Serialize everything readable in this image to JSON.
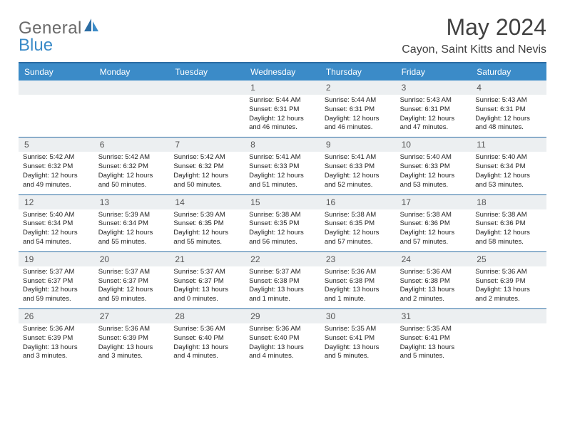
{
  "brand": {
    "word1": "General",
    "word2": "Blue"
  },
  "title": "May 2024",
  "location": "Cayon, Saint Kitts and Nevis",
  "dow": [
    "Sunday",
    "Monday",
    "Tuesday",
    "Wednesday",
    "Thursday",
    "Friday",
    "Saturday"
  ],
  "colors": {
    "header_bg": "#3b8bc8",
    "header_border": "#2b6ca3",
    "daynum_bg": "#eceff1"
  },
  "weeks": [
    [
      {
        "n": "",
        "sr": "",
        "ss": "",
        "dl": ""
      },
      {
        "n": "",
        "sr": "",
        "ss": "",
        "dl": ""
      },
      {
        "n": "",
        "sr": "",
        "ss": "",
        "dl": ""
      },
      {
        "n": "1",
        "sr": "Sunrise: 5:44 AM",
        "ss": "Sunset: 6:31 PM",
        "dl": "Daylight: 12 hours and 46 minutes."
      },
      {
        "n": "2",
        "sr": "Sunrise: 5:44 AM",
        "ss": "Sunset: 6:31 PM",
        "dl": "Daylight: 12 hours and 46 minutes."
      },
      {
        "n": "3",
        "sr": "Sunrise: 5:43 AM",
        "ss": "Sunset: 6:31 PM",
        "dl": "Daylight: 12 hours and 47 minutes."
      },
      {
        "n": "4",
        "sr": "Sunrise: 5:43 AM",
        "ss": "Sunset: 6:31 PM",
        "dl": "Daylight: 12 hours and 48 minutes."
      }
    ],
    [
      {
        "n": "5",
        "sr": "Sunrise: 5:42 AM",
        "ss": "Sunset: 6:32 PM",
        "dl": "Daylight: 12 hours and 49 minutes."
      },
      {
        "n": "6",
        "sr": "Sunrise: 5:42 AM",
        "ss": "Sunset: 6:32 PM",
        "dl": "Daylight: 12 hours and 50 minutes."
      },
      {
        "n": "7",
        "sr": "Sunrise: 5:42 AM",
        "ss": "Sunset: 6:32 PM",
        "dl": "Daylight: 12 hours and 50 minutes."
      },
      {
        "n": "8",
        "sr": "Sunrise: 5:41 AM",
        "ss": "Sunset: 6:33 PM",
        "dl": "Daylight: 12 hours and 51 minutes."
      },
      {
        "n": "9",
        "sr": "Sunrise: 5:41 AM",
        "ss": "Sunset: 6:33 PM",
        "dl": "Daylight: 12 hours and 52 minutes."
      },
      {
        "n": "10",
        "sr": "Sunrise: 5:40 AM",
        "ss": "Sunset: 6:33 PM",
        "dl": "Daylight: 12 hours and 53 minutes."
      },
      {
        "n": "11",
        "sr": "Sunrise: 5:40 AM",
        "ss": "Sunset: 6:34 PM",
        "dl": "Daylight: 12 hours and 53 minutes."
      }
    ],
    [
      {
        "n": "12",
        "sr": "Sunrise: 5:40 AM",
        "ss": "Sunset: 6:34 PM",
        "dl": "Daylight: 12 hours and 54 minutes."
      },
      {
        "n": "13",
        "sr": "Sunrise: 5:39 AM",
        "ss": "Sunset: 6:34 PM",
        "dl": "Daylight: 12 hours and 55 minutes."
      },
      {
        "n": "14",
        "sr": "Sunrise: 5:39 AM",
        "ss": "Sunset: 6:35 PM",
        "dl": "Daylight: 12 hours and 55 minutes."
      },
      {
        "n": "15",
        "sr": "Sunrise: 5:38 AM",
        "ss": "Sunset: 6:35 PM",
        "dl": "Daylight: 12 hours and 56 minutes."
      },
      {
        "n": "16",
        "sr": "Sunrise: 5:38 AM",
        "ss": "Sunset: 6:35 PM",
        "dl": "Daylight: 12 hours and 57 minutes."
      },
      {
        "n": "17",
        "sr": "Sunrise: 5:38 AM",
        "ss": "Sunset: 6:36 PM",
        "dl": "Daylight: 12 hours and 57 minutes."
      },
      {
        "n": "18",
        "sr": "Sunrise: 5:38 AM",
        "ss": "Sunset: 6:36 PM",
        "dl": "Daylight: 12 hours and 58 minutes."
      }
    ],
    [
      {
        "n": "19",
        "sr": "Sunrise: 5:37 AM",
        "ss": "Sunset: 6:37 PM",
        "dl": "Daylight: 12 hours and 59 minutes."
      },
      {
        "n": "20",
        "sr": "Sunrise: 5:37 AM",
        "ss": "Sunset: 6:37 PM",
        "dl": "Daylight: 12 hours and 59 minutes."
      },
      {
        "n": "21",
        "sr": "Sunrise: 5:37 AM",
        "ss": "Sunset: 6:37 PM",
        "dl": "Daylight: 13 hours and 0 minutes."
      },
      {
        "n": "22",
        "sr": "Sunrise: 5:37 AM",
        "ss": "Sunset: 6:38 PM",
        "dl": "Daylight: 13 hours and 1 minute."
      },
      {
        "n": "23",
        "sr": "Sunrise: 5:36 AM",
        "ss": "Sunset: 6:38 PM",
        "dl": "Daylight: 13 hours and 1 minute."
      },
      {
        "n": "24",
        "sr": "Sunrise: 5:36 AM",
        "ss": "Sunset: 6:38 PM",
        "dl": "Daylight: 13 hours and 2 minutes."
      },
      {
        "n": "25",
        "sr": "Sunrise: 5:36 AM",
        "ss": "Sunset: 6:39 PM",
        "dl": "Daylight: 13 hours and 2 minutes."
      }
    ],
    [
      {
        "n": "26",
        "sr": "Sunrise: 5:36 AM",
        "ss": "Sunset: 6:39 PM",
        "dl": "Daylight: 13 hours and 3 minutes."
      },
      {
        "n": "27",
        "sr": "Sunrise: 5:36 AM",
        "ss": "Sunset: 6:39 PM",
        "dl": "Daylight: 13 hours and 3 minutes."
      },
      {
        "n": "28",
        "sr": "Sunrise: 5:36 AM",
        "ss": "Sunset: 6:40 PM",
        "dl": "Daylight: 13 hours and 4 minutes."
      },
      {
        "n": "29",
        "sr": "Sunrise: 5:36 AM",
        "ss": "Sunset: 6:40 PM",
        "dl": "Daylight: 13 hours and 4 minutes."
      },
      {
        "n": "30",
        "sr": "Sunrise: 5:35 AM",
        "ss": "Sunset: 6:41 PM",
        "dl": "Daylight: 13 hours and 5 minutes."
      },
      {
        "n": "31",
        "sr": "Sunrise: 5:35 AM",
        "ss": "Sunset: 6:41 PM",
        "dl": "Daylight: 13 hours and 5 minutes."
      },
      {
        "n": "",
        "sr": "",
        "ss": "",
        "dl": ""
      }
    ]
  ]
}
